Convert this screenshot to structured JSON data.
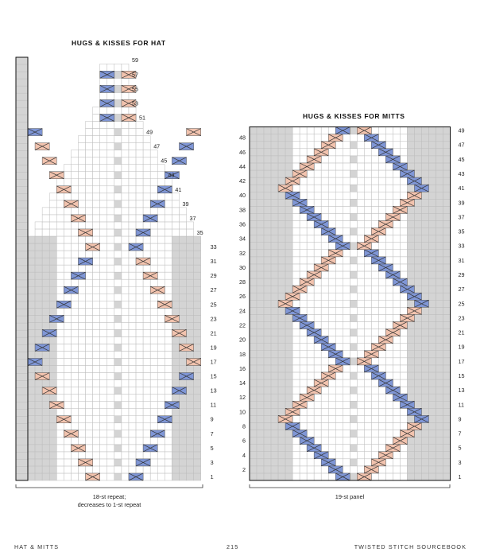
{
  "page": {
    "footer_left": "HAT & MITTS",
    "page_number": "215",
    "footer_right": "TWISTED STITCH SOURCEBOOK"
  },
  "colors": {
    "blue": "#7f96d6",
    "pink": "#f2c3ae",
    "gray": "#d4d4d4",
    "line": "#bdbdbd",
    "outline": "#111111"
  },
  "hat_chart": {
    "title": "HUGS & KISSES FOR HAT",
    "caption_line1": "18-st repeat;",
    "caption_line2": "decreases to 1-st repeat",
    "row_labels": [
      "1",
      "3",
      "5",
      "7",
      "9",
      "11",
      "13",
      "15",
      "17",
      "19",
      "21",
      "23",
      "25",
      "27",
      "29",
      "31",
      "33",
      "35",
      "37",
      "39",
      "41",
      "43",
      "45",
      "47",
      "49",
      "51",
      "53",
      "55",
      "57",
      "59"
    ]
  },
  "mitts_chart": {
    "title": "HUGS & KISSES FOR MITTS",
    "caption": "19-st panel",
    "right_labels": [
      "1",
      "3",
      "5",
      "7",
      "9",
      "11",
      "13",
      "15",
      "17",
      "19",
      "21",
      "23",
      "25",
      "27",
      "29",
      "31",
      "33",
      "35",
      "37",
      "39",
      "41",
      "43",
      "45",
      "47",
      "49"
    ],
    "left_labels": [
      "2",
      "4",
      "6",
      "8",
      "10",
      "12",
      "14",
      "16",
      "18",
      "20",
      "22",
      "24",
      "26",
      "28",
      "30",
      "32",
      "34",
      "36",
      "38",
      "40",
      "42",
      "44",
      "46",
      "48"
    ]
  }
}
